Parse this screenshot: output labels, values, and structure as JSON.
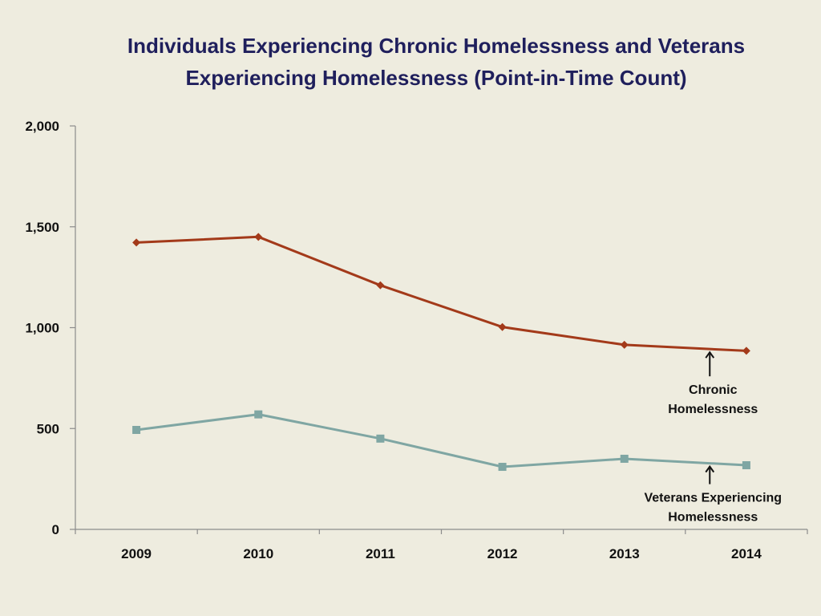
{
  "chart_data": {
    "type": "line",
    "title_lines": [
      "Individuals Experiencing Chronic Homelessness and Veterans",
      "Experiencing Homelessness (Point-in-Time Count)"
    ],
    "xlabel": "",
    "ylabel": "",
    "categories": [
      "2009",
      "2010",
      "2011",
      "2012",
      "2013",
      "2014"
    ],
    "y_ticks": [
      0,
      500,
      1000,
      1500,
      2000
    ],
    "y_tick_labels": [
      "0",
      "500",
      "1,000",
      "1,500",
      "2,000"
    ],
    "ylim": [
      0,
      2000
    ],
    "grid": false,
    "legend": "none",
    "series": [
      {
        "name": "Chronic Homelessness",
        "marker": "diamond",
        "color": "#A33A1A",
        "values": [
          1422,
          1450,
          1210,
          1003,
          915,
          885
        ]
      },
      {
        "name": "Veterans Experiencing Homelessness",
        "marker": "square",
        "color": "#7FA6A3",
        "values": [
          493,
          570,
          450,
          310,
          350,
          318
        ]
      }
    ],
    "annotations": [
      {
        "series": "Chronic Homelessness",
        "lines": [
          "Chronic",
          "Homelessness"
        ]
      },
      {
        "series": "Veterans Experiencing Homelessness",
        "lines": [
          "Veterans Experiencing",
          "Homelessness"
        ]
      }
    ]
  }
}
